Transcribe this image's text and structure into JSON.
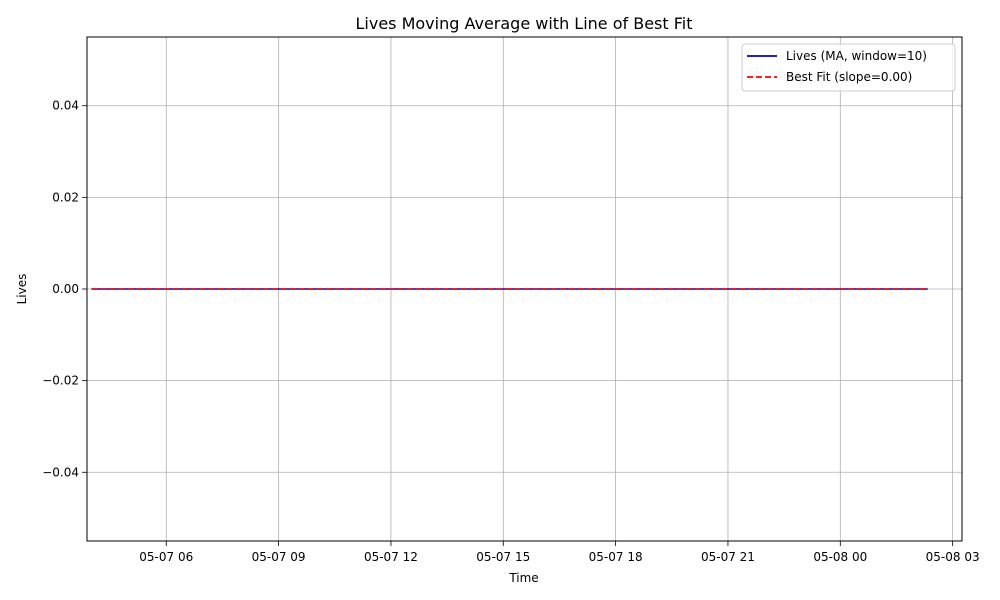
{
  "chart_data": {
    "type": "line",
    "title": "Lives Moving Average with Line of Best Fit",
    "xlabel": "Time",
    "ylabel": "Lives",
    "x_ticks": [
      "05-07 06",
      "05-07 09",
      "05-07 12",
      "05-07 15",
      "05-07 18",
      "05-07 21",
      "05-08 00",
      "05-08 03"
    ],
    "y_ticks": [
      "−0.04",
      "−0.02",
      "0.00",
      "0.02",
      "0.04"
    ],
    "y_tick_values": [
      -0.04,
      -0.02,
      0.0,
      0.02,
      0.04
    ],
    "xlim": [
      "2024-05-07 03:53",
      "2024-05-08 03:15"
    ],
    "ylim": [
      -0.055,
      0.055
    ],
    "grid": true,
    "legend_position": "top-right",
    "series": [
      {
        "name": "Lives (MA, window=10)",
        "color": "#0000cc",
        "style": "solid",
        "x": [
          "2024-05-07 04:00",
          "2024-05-08 02:20"
        ],
        "values": [
          0.0,
          0.0
        ]
      },
      {
        "name": "Best Fit (slope=0.00)",
        "color": "#ff0000",
        "style": "dashed",
        "x": [
          "2024-05-07 04:00",
          "2024-05-08 02:20"
        ],
        "values": [
          0.0,
          0.0
        ]
      }
    ]
  }
}
